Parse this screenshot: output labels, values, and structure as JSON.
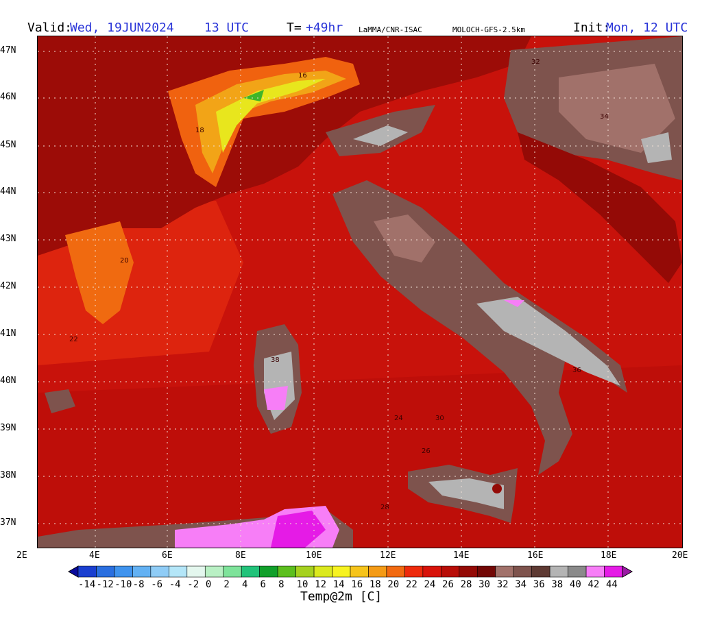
{
  "header": {
    "valid_label": "Valid:",
    "valid_date": "Wed, 19JUN2024",
    "valid_time": "13 UTC",
    "lead_label": "T=",
    "lead_value": "+49hr",
    "source": "LaMMA/CNR-ISAC",
    "model": "MOLOCH-GFS-2.5km",
    "init_label": "Init:",
    "init_value": "Mon, 12 UTC"
  },
  "axes": {
    "lat_labels": [
      "47N",
      "46N",
      "45N",
      "44N",
      "43N",
      "42N",
      "41N",
      "40N",
      "39N",
      "38N",
      "37N"
    ],
    "lon_labels": [
      "2E",
      "4E",
      "6E",
      "8E",
      "10E",
      "12E",
      "14E",
      "16E",
      "18E",
      "20E"
    ]
  },
  "colorbar": {
    "title": "Temp@2m [C]",
    "labels": [
      "-14",
      "-12",
      "-10",
      "-8",
      "-6",
      "-4",
      "-2",
      "0",
      "2",
      "4",
      "6",
      "8",
      "10",
      "12",
      "14",
      "16",
      "18",
      "20",
      "22",
      "24",
      "26",
      "28",
      "30",
      "32",
      "34",
      "36",
      "38",
      "40",
      "42",
      "44"
    ],
    "colors": [
      "#0a0a9c",
      "#1a3fd0",
      "#2a6fe0",
      "#3f93ee",
      "#63b1f3",
      "#8fccf6",
      "#b4e6f8",
      "#e4f7ee",
      "#b9f0c4",
      "#7ee39a",
      "#21c37a",
      "#11a02b",
      "#5cbf1e",
      "#a5d11f",
      "#dbe91e",
      "#f7f321",
      "#f6c41b",
      "#f49b16",
      "#f26a11",
      "#ee2a0c",
      "#d8130a",
      "#b80d08",
      "#940a06",
      "#720806",
      "#a1716a",
      "#7e534d",
      "#5e3a33",
      "#b4b4b4",
      "#8a8a8a",
      "#f77ef7",
      "#e51be6",
      "#9a1aa4"
    ]
  },
  "map_labels": [
    "20",
    "18",
    "16",
    "22",
    "24",
    "26",
    "28",
    "30",
    "32",
    "34",
    "36",
    "38"
  ]
}
